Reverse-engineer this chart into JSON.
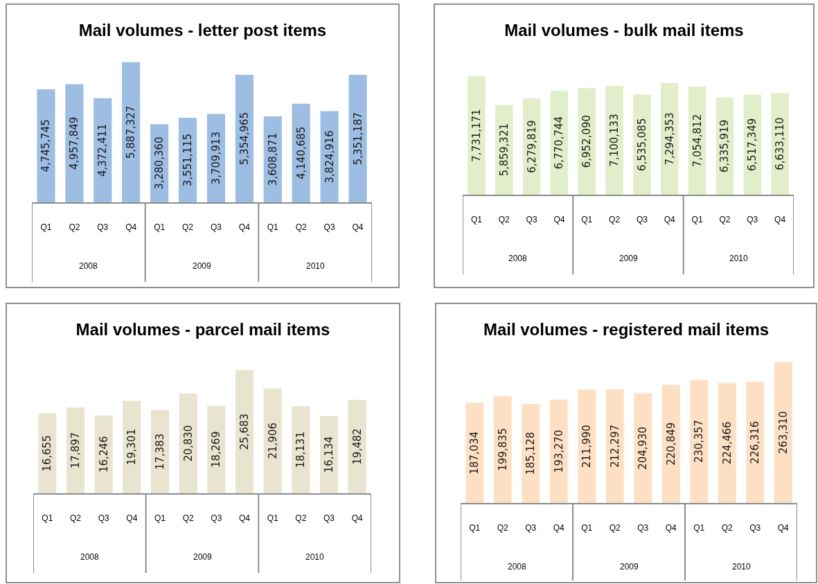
{
  "chart_data": [
    {
      "type": "bar",
      "title": "Mail volumes - letter post items",
      "categories": [
        "Q1",
        "Q2",
        "Q3",
        "Q4",
        "Q1",
        "Q2",
        "Q3",
        "Q4",
        "Q1",
        "Q2",
        "Q3",
        "Q4"
      ],
      "values": [
        4745745,
        4957849,
        4372411,
        5887327,
        3280360,
        3551115,
        3709913,
        5354965,
        3608871,
        4140685,
        3824916,
        5351187
      ],
      "value_labels": [
        "4,745,745",
        "4,957,849",
        "4,372,411",
        "5,887,327",
        "3,280,360",
        "3,551,115",
        "3,709,913",
        "5,354,965",
        "3,608,871",
        "4,140,685",
        "3,824,916",
        "5,351,187"
      ],
      "color": "#9dbde3",
      "tick_labels": "x",
      "annotations": [
        "2008",
        "2009",
        "2010"
      ]
    },
    {
      "type": "bar",
      "title": "Mail volumes - bulk mail items",
      "categories": [
        "Q1",
        "Q2",
        "Q3",
        "Q4",
        "Q1",
        "Q2",
        "Q3",
        "Q4",
        "Q1",
        "Q2",
        "Q3",
        "Q4"
      ],
      "values": [
        7731171,
        5859321,
        6279819,
        6770744,
        6952090,
        7100133,
        6535085,
        7294353,
        7054812,
        6335919,
        6517349,
        6633110
      ],
      "value_labels": [
        "7,731,171",
        "5,859,321",
        "6,279,819",
        "6,770,744",
        "6,952,090",
        "7,100,133",
        "6,535,085",
        "7,294,353",
        "7,054,812",
        "6,335,919",
        "6,517,349",
        "6,633,110"
      ],
      "color": "#e2eec9",
      "tick_labels": "x",
      "annotations": [
        "2008",
        "2009",
        "2010"
      ]
    },
    {
      "type": "bar",
      "title": "Mail volumes - parcel mail items",
      "categories": [
        "Q1",
        "Q2",
        "Q3",
        "Q4",
        "Q1",
        "Q2",
        "Q3",
        "Q4",
        "Q1",
        "Q2",
        "Q3",
        "Q4"
      ],
      "values": [
        16655,
        17897,
        16246,
        19301,
        17383,
        20830,
        18269,
        25683,
        21906,
        18131,
        16134,
        19482
      ],
      "value_labels": [
        "16,655",
        "17,897",
        "16,246",
        "19,301",
        "17,383",
        "20,830",
        "18,269",
        "25,683",
        "21,906",
        "18,131",
        "16,134",
        "19,482"
      ],
      "color": "#e8e4d0",
      "tick_labels": "x",
      "annotations": [
        "2008",
        "2009",
        "2010"
      ]
    },
    {
      "type": "bar",
      "title": "Mail volumes - registered mail items",
      "categories": [
        "Q1",
        "Q2",
        "Q3",
        "Q4",
        "Q1",
        "Q2",
        "Q3",
        "Q4",
        "Q1",
        "Q2",
        "Q3",
        "Q4"
      ],
      "values": [
        187034,
        199835,
        185128,
        193270,
        211990,
        212297,
        204930,
        220849,
        230357,
        224466,
        226316,
        263310
      ],
      "value_labels": [
        "187,034",
        "199,835",
        "185,128",
        "193,270",
        "211,990",
        "212,297",
        "204,930",
        "220,849",
        "230,357",
        "224,466",
        "226,316",
        "263,310"
      ],
      "color": "#fde0c4",
      "tick_labels": "x",
      "annotations": [
        "2008",
        "2009",
        "2010"
      ]
    }
  ]
}
